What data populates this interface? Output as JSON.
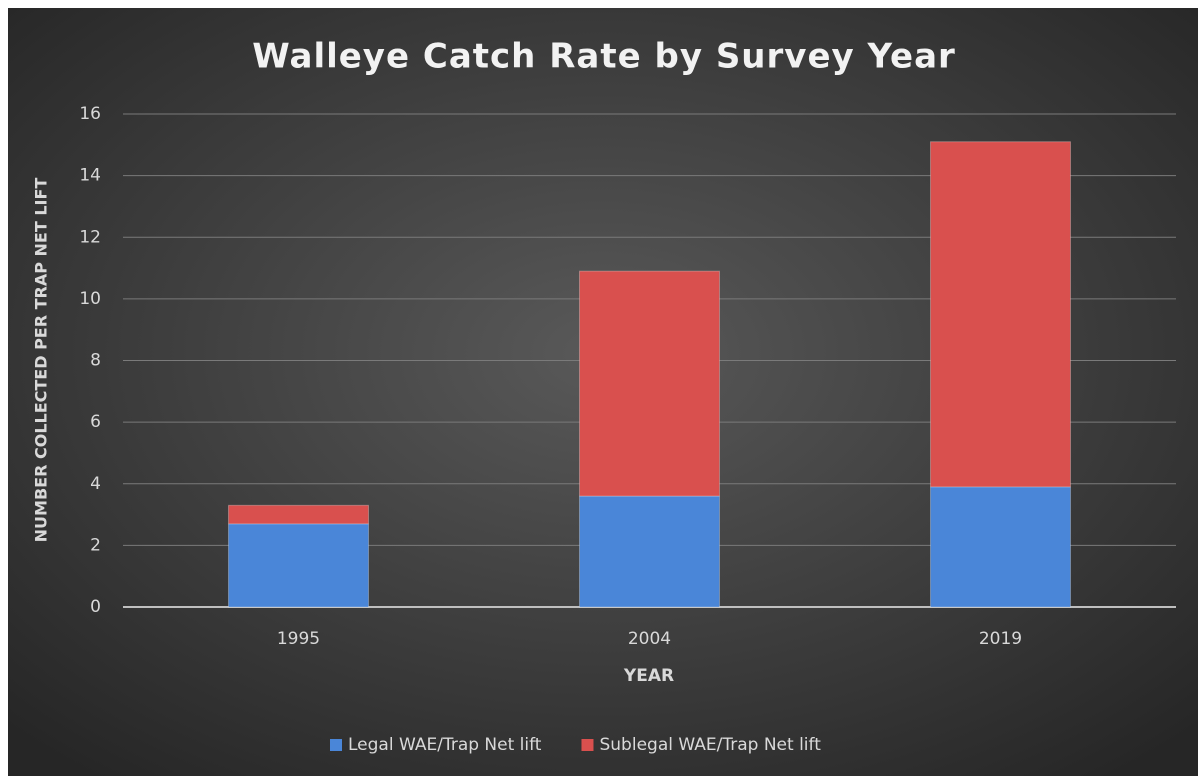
{
  "chart_data": {
    "type": "bar",
    "stacked": true,
    "title": "Walleye Catch Rate by Survey Year",
    "x_label": "YEAR",
    "y_label": "NUMBER COLLECTED PER TRAP NET LIFT",
    "categories": [
      "1995",
      "2004",
      "2019"
    ],
    "series": [
      {
        "name": "Legal WAE/Trap Net lift",
        "color": "#4a86d8",
        "values": [
          2.7,
          3.6,
          3.9
        ]
      },
      {
        "name": "Sublegal WAE/Trap Net lift",
        "color": "#d9504e",
        "values": [
          0.6,
          7.3,
          11.2
        ]
      }
    ],
    "ylim": [
      0,
      16
    ],
    "yticks": [
      0,
      2,
      4,
      6,
      8,
      10,
      12,
      14,
      16
    ],
    "grid": true,
    "legend": "bottom"
  }
}
